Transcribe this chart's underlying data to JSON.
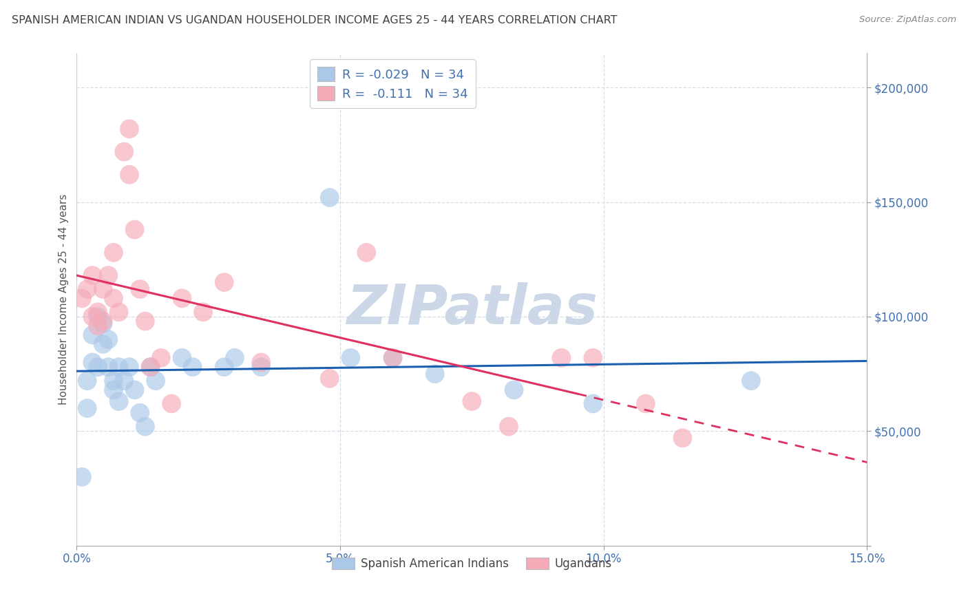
{
  "title": "SPANISH AMERICAN INDIAN VS UGANDAN HOUSEHOLDER INCOME AGES 25 - 44 YEARS CORRELATION CHART",
  "source": "Source: ZipAtlas.com",
  "ylabel": "Householder Income Ages 25 - 44 years",
  "xlim": [
    0.0,
    0.15
  ],
  "ylim": [
    0,
    215000
  ],
  "xticks": [
    0.0,
    0.05,
    0.1,
    0.15
  ],
  "xtick_labels": [
    "0.0%",
    "5.0%",
    "10.0%",
    "15.0%"
  ],
  "yticks": [
    0,
    50000,
    100000,
    150000,
    200000
  ],
  "ytick_labels": [
    "",
    "$50,000",
    "$100,000",
    "$150,000",
    "$200,000"
  ],
  "r_blue": -0.029,
  "r_pink": -0.111,
  "n_blue": 34,
  "n_pink": 34,
  "blue_color": "#aac8e8",
  "pink_color": "#f5aab8",
  "line_blue": "#1a5fb0",
  "line_pink": "#e03060",
  "watermark": "ZIPatlas",
  "watermark_color": "#ccd8e8",
  "blue_scatter_x": [
    0.001,
    0.002,
    0.002,
    0.003,
    0.003,
    0.004,
    0.004,
    0.005,
    0.005,
    0.006,
    0.006,
    0.007,
    0.007,
    0.008,
    0.008,
    0.009,
    0.01,
    0.011,
    0.012,
    0.013,
    0.014,
    0.015,
    0.02,
    0.022,
    0.028,
    0.03,
    0.035,
    0.048,
    0.052,
    0.06,
    0.068,
    0.083,
    0.098,
    0.128
  ],
  "blue_scatter_y": [
    30000,
    60000,
    72000,
    80000,
    92000,
    78000,
    100000,
    88000,
    97000,
    90000,
    78000,
    72000,
    68000,
    78000,
    63000,
    72000,
    78000,
    68000,
    58000,
    52000,
    78000,
    72000,
    82000,
    78000,
    78000,
    82000,
    78000,
    152000,
    82000,
    82000,
    75000,
    68000,
    62000,
    72000
  ],
  "pink_scatter_x": [
    0.001,
    0.002,
    0.003,
    0.003,
    0.004,
    0.004,
    0.005,
    0.005,
    0.006,
    0.007,
    0.007,
    0.008,
    0.009,
    0.01,
    0.01,
    0.011,
    0.012,
    0.013,
    0.014,
    0.016,
    0.018,
    0.02,
    0.024,
    0.028,
    0.035,
    0.048,
    0.055,
    0.06,
    0.075,
    0.082,
    0.092,
    0.098,
    0.108,
    0.115
  ],
  "pink_scatter_y": [
    108000,
    112000,
    100000,
    118000,
    96000,
    102000,
    112000,
    98000,
    118000,
    128000,
    108000,
    102000,
    172000,
    182000,
    162000,
    138000,
    112000,
    98000,
    78000,
    82000,
    62000,
    108000,
    102000,
    115000,
    80000,
    73000,
    128000,
    82000,
    63000,
    52000,
    82000,
    82000,
    62000,
    47000
  ],
  "blue_marker_size": 400,
  "pink_marker_size": 400,
  "grid_color": "#d0dae4",
  "bg_color": "#ffffff",
  "title_color": "#404040",
  "axis_color": "#4070b0",
  "legend_label_blue": "Spanish American Indians",
  "legend_label_pink": "Ugandans",
  "pink_line_solid_end": 0.095,
  "pink_line_dashed_start": 0.095
}
